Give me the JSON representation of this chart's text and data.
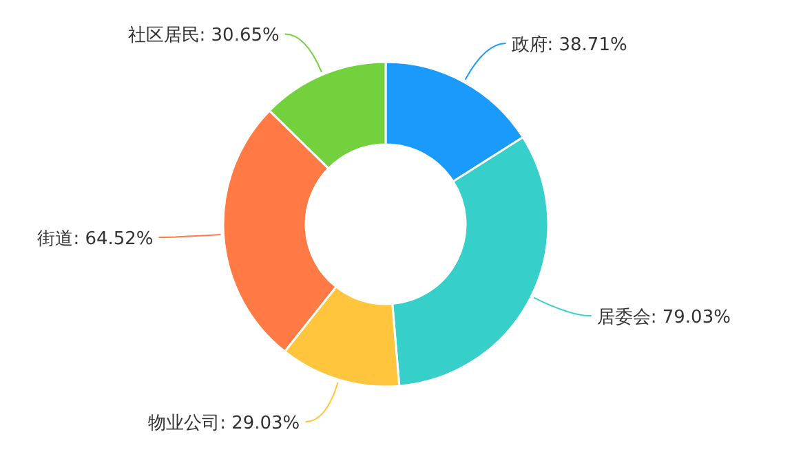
{
  "chart_data": {
    "type": "donut",
    "categories": [
      "政府",
      "居委会",
      "物业公司",
      "街道",
      "社区居民"
    ],
    "values": [
      38.71,
      79.03,
      29.03,
      64.52,
      30.65
    ],
    "value_labels": [
      "38.71%",
      "79.03%",
      "29.03%",
      "64.52%",
      "30.65%"
    ],
    "colors": [
      "#1a9bfc",
      "#36cfc9",
      "#ffc53d",
      "#ff7a45",
      "#73d13d"
    ]
  }
}
